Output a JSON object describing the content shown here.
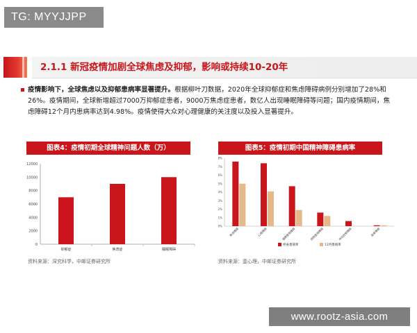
{
  "tag": "TG: MYYJJPP",
  "header": {
    "title": "2.1.1 新冠疫情加剧全球焦虑及抑郁，影响或持续10-20年"
  },
  "body": {
    "lead": "疫情影响下，全球焦虑以及抑郁患病率显著提升。",
    "text": "根据柳叶刀数据，2020年全球抑郁症和焦虑障碍病例分别增加了28%和26%。疫情期间，全球新增超过7000万抑郁症患者，9000万焦虑症患者，数亿人出现睡眠障碍等问题；国内疫情期间，焦虑障碍12个月内患病率达到4.98%。疫情使得大众对心理健康的关注度以及投入显著提升。"
  },
  "watermark": "www.rootz-asia.com",
  "colors": {
    "accent": "#c9151b",
    "tan": "#e6b98a"
  },
  "chart_data": [
    {
      "type": "bar",
      "title": "图表4：疫情初期全球精神问题人数（万）",
      "categories": [
        "抑郁症",
        "焦虑症",
        "睡眠障碍"
      ],
      "values": [
        7000,
        9000,
        10000
      ],
      "ylim": [
        0,
        12000
      ],
      "yticks": [
        "0",
        "2000",
        "4000",
        "6000",
        "8000",
        "10000",
        "12000"
      ],
      "grid": false,
      "source": "资料来源：深究科学，中邮证券研究所"
    },
    {
      "type": "bar",
      "title": "图表5：疫情初期中国精神障碍患病率",
      "categories": [
        "焦虑障碍",
        "心境障碍",
        "酒精使用障碍",
        "药物使用障碍",
        "冲动控制障碍",
        "进食障碍"
      ],
      "series": [
        {
          "name": "终身患病率",
          "values": [
            7.6,
            7.4,
            4.7,
            1.6,
            0.6,
            0.1
          ]
        },
        {
          "name": "12月患病率",
          "values": [
            5.0,
            4.1,
            1.9,
            1.2,
            0.0,
            0.1
          ]
        }
      ],
      "ylim": [
        0,
        8
      ],
      "yticks": [
        "0%",
        "1%",
        "2%",
        "3%",
        "4%",
        "5%",
        "6%",
        "7%",
        "8%"
      ],
      "legend": "bottom",
      "grid": false,
      "source": "资料来源：壹心理，中邮证券研究所"
    }
  ]
}
